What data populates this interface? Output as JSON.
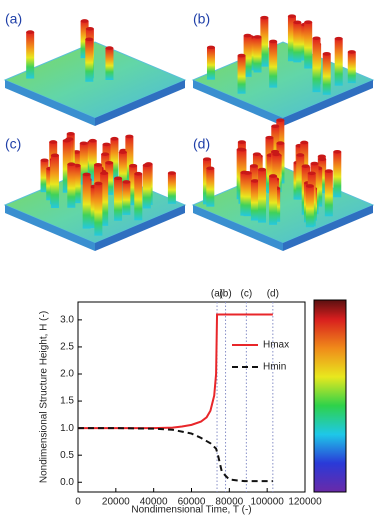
{
  "panels": [
    "(a)",
    "(b)",
    "(c)",
    "(d)"
  ],
  "chart_data": {
    "type": "line",
    "xlabel": "Nondimensional Time, T (-)",
    "ylabel": "Nondimensional Structure Height, H (-)",
    "xlim": [
      0,
      120000
    ],
    "ylim": [
      -0.18,
      3.33
    ],
    "xticks": [
      0,
      20000,
      40000,
      60000,
      80000,
      100000,
      120000
    ],
    "yticks": [
      {
        "value": 0,
        "label": "0.0"
      },
      0.5,
      {
        "value": 1,
        "label": "1.0"
      },
      1.5,
      {
        "value": 2,
        "label": "2.0"
      },
      2.5,
      {
        "value": 3,
        "label": "3.0"
      }
    ],
    "markers": [
      {
        "label": "(a)",
        "x": 73500
      },
      {
        "label": "(b)",
        "x": 78000
      },
      {
        "label": "(c)",
        "x": 89000
      },
      {
        "label": "(d)",
        "x": 103000
      }
    ],
    "legend": "right",
    "series": [
      {
        "name": "Hmax",
        "color": "#e8262a",
        "dash": false,
        "x": [
          0,
          20000,
          40000,
          50000,
          55000,
          60000,
          65000,
          68000,
          70000,
          72000,
          73000,
          73500,
          80000,
          90000,
          103000
        ],
        "values": [
          1.0,
          1.0,
          1.0,
          1.01,
          1.03,
          1.06,
          1.12,
          1.2,
          1.32,
          1.6,
          2.0,
          3.1,
          3.1,
          3.1,
          3.1
        ]
      },
      {
        "name": "Hmin",
        "color": "#111111",
        "dash": true,
        "x": [
          0,
          20000,
          40000,
          50000,
          60000,
          65000,
          70000,
          73000,
          74000,
          75000,
          76000,
          78000,
          80000,
          88000,
          103000
        ],
        "values": [
          1.0,
          1.0,
          0.99,
          0.97,
          0.9,
          0.82,
          0.72,
          0.62,
          0.5,
          0.35,
          0.2,
          0.12,
          0.05,
          0.02,
          0.02
        ]
      }
    ]
  }
}
